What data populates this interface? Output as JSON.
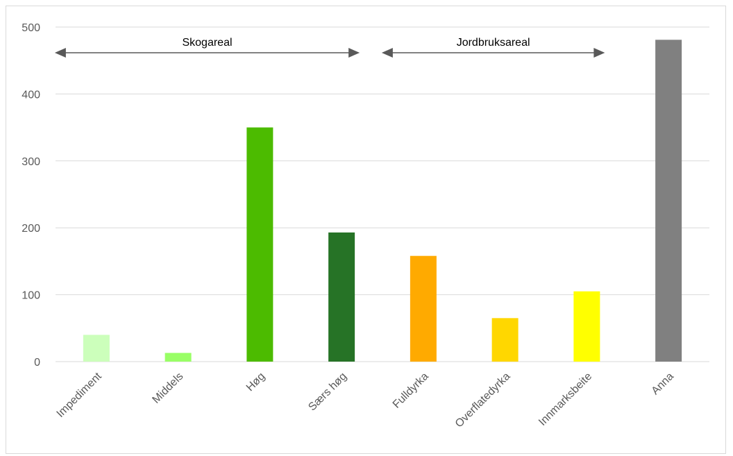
{
  "chart_data": {
    "type": "bar",
    "title": "",
    "xlabel": "",
    "ylabel": "",
    "ylim": [
      0,
      500
    ],
    "yticks": [
      0,
      100,
      200,
      300,
      400,
      500
    ],
    "grid": true,
    "categories": [
      "Impediment",
      "Middels",
      "Høg",
      "Særs høg",
      "Fulldyrka",
      "Overflatedyrka",
      "Innmarksbeite",
      "Anna"
    ],
    "values": [
      40,
      13,
      350,
      193,
      158,
      65,
      105,
      481
    ],
    "colors": [
      "#ccffbb",
      "#99ff66",
      "#4cbb00",
      "#267326",
      "#ffaa00",
      "#ffd700",
      "#ffff00",
      "#808080"
    ],
    "annotations": [
      {
        "label": "Skogareal",
        "from_category": 0,
        "to_category": 3
      },
      {
        "label": "Jordbruksareal",
        "from_category": 4,
        "to_category": 6
      }
    ]
  }
}
